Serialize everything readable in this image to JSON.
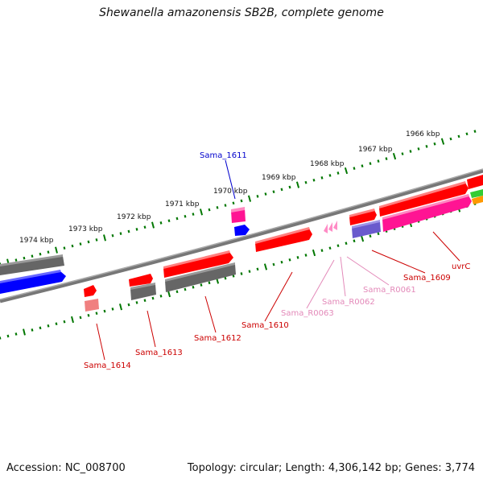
{
  "title": "Shewanella amazonensis SB2B, complete genome",
  "footer": {
    "accession": "Accession: NC_008700",
    "summary": "Topology: circular; Length: 4,306,142 bp; Genes: 3,774"
  },
  "colors": {
    "cds_forward": "#ff0000",
    "cds_forward_light": "#f08080",
    "rna": "#ff1493",
    "rna_label": "#e389b9",
    "gene_label": "#cc0000",
    "blue_label": "#0000cc",
    "gray_feature": "#666666",
    "blue_feature": "#0000ff",
    "purple_feature": "#6a5acd",
    "tick": "#007700",
    "backbone": "#888888",
    "green_feature": "#33cc33",
    "orange_feature": "#ff9900"
  },
  "ruler_labels": [
    "1974 kbp",
    "1973 kbp",
    "1972 kbp",
    "1971 kbp",
    "1970 kbp",
    "1969 kbp",
    "1968 kbp",
    "1967 kbp",
    "1966 kbp"
  ],
  "gene_labels": [
    "Sama_1614",
    "Sama_1613",
    "Sama_1612",
    "Sama_1610",
    "Sama_R0063",
    "Sama_R0062",
    "Sama_R0061",
    "Sama_1609",
    "uvrC",
    "Sama_1611"
  ]
}
